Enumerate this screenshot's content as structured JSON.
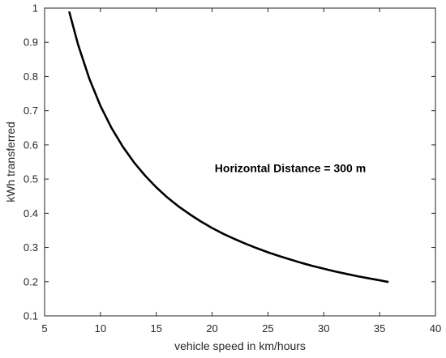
{
  "chart_data": {
    "type": "line",
    "title": "",
    "xlabel": "vehicle speed in km/hours",
    "ylabel": "kWh transferred",
    "xlim": [
      5,
      40
    ],
    "ylim": [
      0.1,
      1
    ],
    "xticks": [
      5,
      10,
      15,
      20,
      25,
      30,
      35,
      40
    ],
    "yticks": [
      0.1,
      0.2,
      0.3,
      0.4,
      0.5,
      0.6,
      0.7,
      0.8,
      0.9,
      1
    ],
    "xtick_labels": [
      "5",
      "10",
      "15",
      "20",
      "25",
      "30",
      "35",
      "40"
    ],
    "ytick_labels": [
      "0.1",
      "0.2",
      "0.3",
      "0.4",
      "0.5",
      "0.6",
      "0.7",
      "0.8",
      "0.9",
      "1"
    ],
    "grid": false,
    "series": [
      {
        "color": "#000000",
        "x": [
          7.2,
          8,
          9,
          10,
          11,
          12,
          13,
          14,
          15,
          16,
          17,
          18,
          19,
          20,
          21,
          22,
          23,
          24,
          25,
          26,
          27,
          28,
          29,
          30,
          31,
          32,
          33,
          34,
          35,
          35.8
        ],
        "y": [
          0.99,
          0.893,
          0.794,
          0.714,
          0.649,
          0.595,
          0.549,
          0.51,
          0.476,
          0.446,
          0.42,
          0.397,
          0.376,
          0.357,
          0.34,
          0.325,
          0.311,
          0.298,
          0.286,
          0.275,
          0.265,
          0.255,
          0.246,
          0.238,
          0.23,
          0.223,
          0.216,
          0.21,
          0.204,
          0.199
        ]
      }
    ],
    "annotations": [
      {
        "text": "Horizontal Distance = 300 m",
        "x": 27,
        "y": 0.52
      }
    ]
  }
}
